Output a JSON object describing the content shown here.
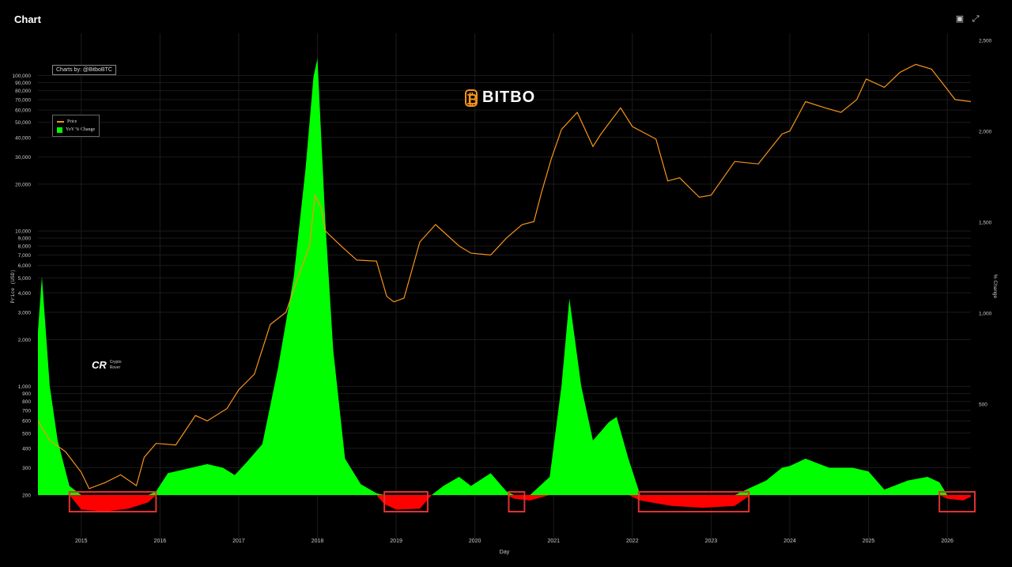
{
  "header": {
    "title": "Chart",
    "icons": [
      "camera-icon",
      "fullscreen-icon"
    ]
  },
  "credit": "Charts by: @BitboBTC",
  "watermark": "BITBO",
  "rover": "Crypto Rover",
  "colors": {
    "price": "#f7931a",
    "positive": "#00ff00",
    "negative": "#ff0000",
    "box": "#e23030"
  },
  "chart_data": {
    "type": "line",
    "xlabel": "Day",
    "y_left_label": "Price (USD)",
    "y_right_label": "% Change",
    "y_left_scale": "log",
    "y_left_range": [
      200,
      120000
    ],
    "y_right_range": [
      -100,
      2500
    ],
    "x_ticks": [
      "2015",
      "2016",
      "2017",
      "2018",
      "2019",
      "2020",
      "2021",
      "2022",
      "2023",
      "2024",
      "2025",
      "2026"
    ],
    "y_left_ticks": [
      "200",
      "300",
      "400",
      "500",
      "600",
      "700",
      "800",
      "900",
      "1,000",
      "2,000",
      "3,000",
      "4,000",
      "5,000",
      "6,000",
      "7,000",
      "8,000",
      "9,000",
      "10,000",
      "20,000",
      "30,000",
      "40,000",
      "50,000",
      "60,000",
      "70,000",
      "80,000",
      "90,000",
      "100,000"
    ],
    "y_right_ticks": [
      "500",
      "1,000",
      "1,500",
      "2,000",
      "2,500"
    ],
    "legend": {
      "placement": "top-left",
      "entries": [
        "Price",
        "YoY % Change"
      ]
    },
    "series": [
      {
        "name": "Price",
        "x": [
          2014.45,
          2014.6,
          2014.8,
          2015.0,
          2015.1,
          2015.3,
          2015.5,
          2015.7,
          2015.8,
          2015.95,
          2016.2,
          2016.45,
          2016.6,
          2016.85,
          2017.0,
          2017.2,
          2017.4,
          2017.6,
          2017.75,
          2017.9,
          2017.97,
          2018.05,
          2018.1,
          2018.3,
          2018.5,
          2018.75,
          2018.88,
          2018.97,
          2019.1,
          2019.3,
          2019.5,
          2019.8,
          2019.95,
          2020.2,
          2020.4,
          2020.6,
          2020.75,
          2020.85,
          2020.97,
          2021.1,
          2021.3,
          2021.5,
          2021.6,
          2021.85,
          2022.0,
          2022.3,
          2022.45,
          2022.6,
          2022.85,
          2023.0,
          2023.3,
          2023.6,
          2023.9,
          2024.0,
          2024.2,
          2024.45,
          2024.65,
          2024.85,
          2024.97,
          2025.2,
          2025.4,
          2025.6,
          2025.8,
          2025.95,
          2026.1,
          2026.3
        ],
        "y": [
          600,
          450,
          380,
          280,
          220,
          240,
          270,
          230,
          350,
          430,
          420,
          650,
          600,
          720,
          950,
          1200,
          2500,
          3000,
          5000,
          8000,
          17000,
          14000,
          10000,
          8000,
          6500,
          6400,
          3800,
          3500,
          3700,
          8500,
          11000,
          8000,
          7200,
          7000,
          9000,
          11000,
          11500,
          18000,
          29000,
          45000,
          58000,
          35000,
          42000,
          62000,
          47000,
          39000,
          21000,
          22000,
          16500,
          17000,
          28000,
          27000,
          42000,
          44000,
          68000,
          62000,
          58000,
          70000,
          95000,
          84000,
          105000,
          118000,
          110000,
          88000,
          70000,
          68000
        ]
      },
      {
        "name": "YoY % Change",
        "x": [
          2014.45,
          2014.5,
          2014.6,
          2014.7,
          2014.85,
          2015.0,
          2015.3,
          2015.6,
          2015.85,
          2015.95,
          2016.1,
          2016.4,
          2016.6,
          2016.8,
          2016.95,
          2017.1,
          2017.3,
          2017.5,
          2017.7,
          2017.85,
          2017.95,
          2018.0,
          2018.1,
          2018.2,
          2018.35,
          2018.55,
          2018.75,
          2018.85,
          2019.0,
          2019.3,
          2019.45,
          2019.6,
          2019.8,
          2019.95,
          2020.2,
          2020.4,
          2020.5,
          2020.7,
          2020.95,
          2021.1,
          2021.2,
          2021.35,
          2021.5,
          2021.7,
          2021.8,
          2021.95,
          2022.1,
          2022.5,
          2022.9,
          2023.3,
          2023.5,
          2023.7,
          2023.9,
          2024.0,
          2024.2,
          2024.5,
          2024.8,
          2025.0,
          2025.2,
          2025.5,
          2025.75,
          2025.9,
          2026.0,
          2026.2,
          2026.3
        ],
        "y": [
          900,
          1200,
          600,
          300,
          50,
          -80,
          -90,
          -75,
          -40,
          20,
          120,
          150,
          170,
          150,
          110,
          180,
          280,
          700,
          1200,
          1800,
          2300,
          2400,
          1500,
          800,
          200,
          60,
          10,
          -50,
          -80,
          -75,
          0,
          50,
          100,
          50,
          120,
          20,
          -20,
          -30,
          100,
          600,
          1080,
          600,
          300,
          400,
          430,
          200,
          -30,
          -60,
          -70,
          -60,
          40,
          80,
          150,
          160,
          200,
          150,
          150,
          130,
          30,
          80,
          100,
          70,
          -20,
          -30,
          -10
        ]
      }
    ],
    "highlight_ranges": [
      [
        2014.85,
        2015.95
      ],
      [
        2018.85,
        2019.4
      ],
      [
        2020.43,
        2020.63
      ],
      [
        2022.08,
        2023.48
      ],
      [
        2025.9,
        2026.35
      ]
    ]
  }
}
